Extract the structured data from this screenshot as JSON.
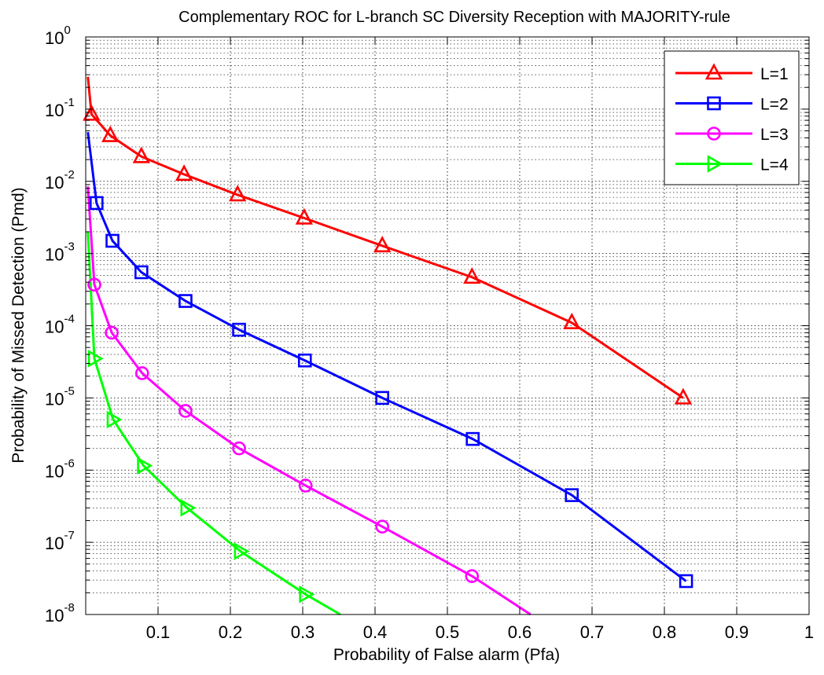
{
  "chart_data": {
    "type": "line",
    "title": "Complementary ROC for L-branch SC Diversity Reception with MAJORITY-rule",
    "xlabel": "Probability of False alarm (Pfa)",
    "ylabel": "Probability of Missed Detection (Pmd)",
    "xlim": [
      0,
      1
    ],
    "ylim": [
      1e-08,
      1
    ],
    "yscale": "log",
    "grid": true,
    "legend_position": "top-right",
    "x_ticks": [
      "0.1",
      "0.2",
      "0.3",
      "0.4",
      "0.5",
      "0.6",
      "0.7",
      "0.8",
      "0.9",
      "1"
    ],
    "y_ticks": [
      {
        "base": "10",
        "exp": "-8",
        "value": 1e-08
      },
      {
        "base": "10",
        "exp": "-7",
        "value": 1e-07
      },
      {
        "base": "10",
        "exp": "-6",
        "value": 1e-06
      },
      {
        "base": "10",
        "exp": "-5",
        "value": 1e-05
      },
      {
        "base": "10",
        "exp": "-4",
        "value": 0.0001
      },
      {
        "base": "10",
        "exp": "-3",
        "value": 0.001
      },
      {
        "base": "10",
        "exp": "-2",
        "value": 0.01
      },
      {
        "base": "10",
        "exp": "-1",
        "value": 0.1
      },
      {
        "base": "10",
        "exp": "0",
        "value": 1
      }
    ],
    "series": [
      {
        "name": "L=1",
        "color": "#ff0000",
        "marker": "triangle-up",
        "line": [
          [
            0.003,
            0.28
          ],
          [
            0.008,
            0.085
          ],
          [
            0.034,
            0.043
          ],
          [
            0.077,
            0.022
          ],
          [
            0.136,
            0.0125
          ],
          [
            0.21,
            0.0065
          ],
          [
            0.302,
            0.0031
          ],
          [
            0.41,
            0.00128
          ],
          [
            0.534,
            0.00047
          ],
          [
            0.672,
            0.00011
          ],
          [
            0.826,
            1e-05
          ]
        ],
        "markers": [
          [
            0.008,
            0.085
          ],
          [
            0.034,
            0.043
          ],
          [
            0.077,
            0.022
          ],
          [
            0.136,
            0.0125
          ],
          [
            0.21,
            0.0065
          ],
          [
            0.302,
            0.0031
          ],
          [
            0.41,
            0.00128
          ],
          [
            0.534,
            0.00047
          ],
          [
            0.672,
            0.00011
          ],
          [
            0.826,
            1e-05
          ]
        ]
      },
      {
        "name": "L=2",
        "color": "#0000ff",
        "marker": "square",
        "line": [
          [
            0.003,
            0.048
          ],
          [
            0.015,
            0.005
          ],
          [
            0.037,
            0.0015
          ],
          [
            0.077,
            0.00055
          ],
          [
            0.138,
            0.00022
          ],
          [
            0.212,
            8.8e-05
          ],
          [
            0.303,
            3.3e-05
          ],
          [
            0.41,
            1e-05
          ],
          [
            0.535,
            2.7e-06
          ],
          [
            0.672,
            4.5e-07
          ],
          [
            0.83,
            2.9e-08
          ]
        ],
        "markers": [
          [
            0.015,
            0.005
          ],
          [
            0.037,
            0.0015
          ],
          [
            0.077,
            0.00055
          ],
          [
            0.138,
            0.00022
          ],
          [
            0.212,
            8.8e-05
          ],
          [
            0.303,
            3.3e-05
          ],
          [
            0.41,
            1e-05
          ],
          [
            0.535,
            2.7e-06
          ],
          [
            0.672,
            4.5e-07
          ],
          [
            0.83,
            2.9e-08
          ]
        ]
      },
      {
        "name": "L=3",
        "color": "#ff00ff",
        "marker": "circle",
        "line": [
          [
            0.003,
            0.0085
          ],
          [
            0.012,
            0.00037
          ],
          [
            0.036,
            8e-05
          ],
          [
            0.078,
            2.2e-05
          ],
          [
            0.138,
            6.6e-06
          ],
          [
            0.212,
            2e-06
          ],
          [
            0.304,
            6.1e-07
          ],
          [
            0.41,
            1.65e-07
          ],
          [
            0.534,
            3.4e-08
          ],
          [
            0.615,
            1e-08
          ]
        ],
        "markers": [
          [
            0.012,
            0.00037
          ],
          [
            0.036,
            8e-05
          ],
          [
            0.078,
            2.2e-05
          ],
          [
            0.138,
            6.6e-06
          ],
          [
            0.212,
            2e-06
          ],
          [
            0.304,
            6.1e-07
          ],
          [
            0.41,
            1.65e-07
          ],
          [
            0.534,
            3.4e-08
          ]
        ]
      },
      {
        "name": "L=4",
        "color": "#00ff00",
        "marker": "triangle-right",
        "line": [
          [
            0.003,
            0.002
          ],
          [
            0.012,
            3.5e-05
          ],
          [
            0.038,
            5e-06
          ],
          [
            0.08,
            1.15e-06
          ],
          [
            0.14,
            3e-07
          ],
          [
            0.214,
            7.5e-08
          ],
          [
            0.304,
            1.9e-08
          ],
          [
            0.352,
            1e-08
          ]
        ],
        "markers": [
          [
            0.012,
            3.5e-05
          ],
          [
            0.038,
            5e-06
          ],
          [
            0.08,
            1.15e-06
          ],
          [
            0.14,
            3e-07
          ],
          [
            0.214,
            7.5e-08
          ],
          [
            0.304,
            1.9e-08
          ]
        ]
      }
    ]
  }
}
